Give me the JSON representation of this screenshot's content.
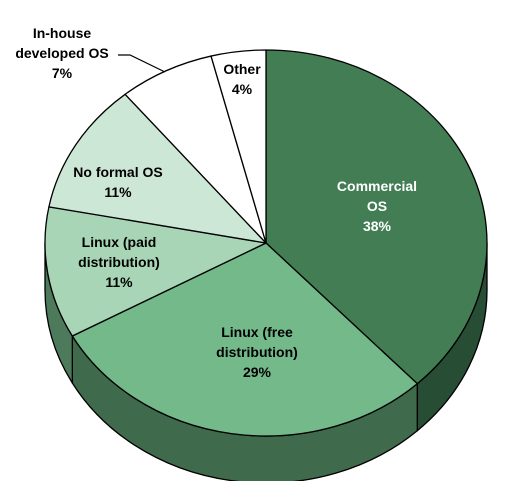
{
  "chart_data": {
    "type": "pie",
    "title": "",
    "slices": [
      {
        "label_lines": [
          "Commercial",
          "OS"
        ],
        "value": 38,
        "value_label": "38%",
        "color": "#437d54",
        "side_color": "#274d34",
        "label_color": "#ffffff"
      },
      {
        "label_lines": [
          "Linux (free",
          "distribution)"
        ],
        "value": 29,
        "value_label": "29%",
        "color": "#73b98a",
        "side_color": "#3f6b4c",
        "label_color": "#000000"
      },
      {
        "label_lines": [
          "Linux (paid",
          "distribution)"
        ],
        "value": 11,
        "value_label": "11%",
        "color": "#a7d5b5",
        "side_color": "#4e7a5c",
        "label_color": "#000000"
      },
      {
        "label_lines": [
          "No formal OS"
        ],
        "value": 11,
        "value_label": "11%",
        "color": "#cde7d6",
        "side_color": "#5e8a6c",
        "label_color": "#000000"
      },
      {
        "label_lines": [
          "In-house",
          "developed OS"
        ],
        "value": 7,
        "value_label": "7%",
        "color": "#ffffff",
        "side_color": "#6a6a6a",
        "label_color": "#000000"
      },
      {
        "label_lines": [
          "Other"
        ],
        "value": 4,
        "value_label": "4%",
        "color": "#ffffff",
        "side_color": "#6a6a6a",
        "label_color": "#000000"
      }
    ],
    "start": "12 o'clock",
    "direction": "clockwise",
    "style": "3d"
  }
}
